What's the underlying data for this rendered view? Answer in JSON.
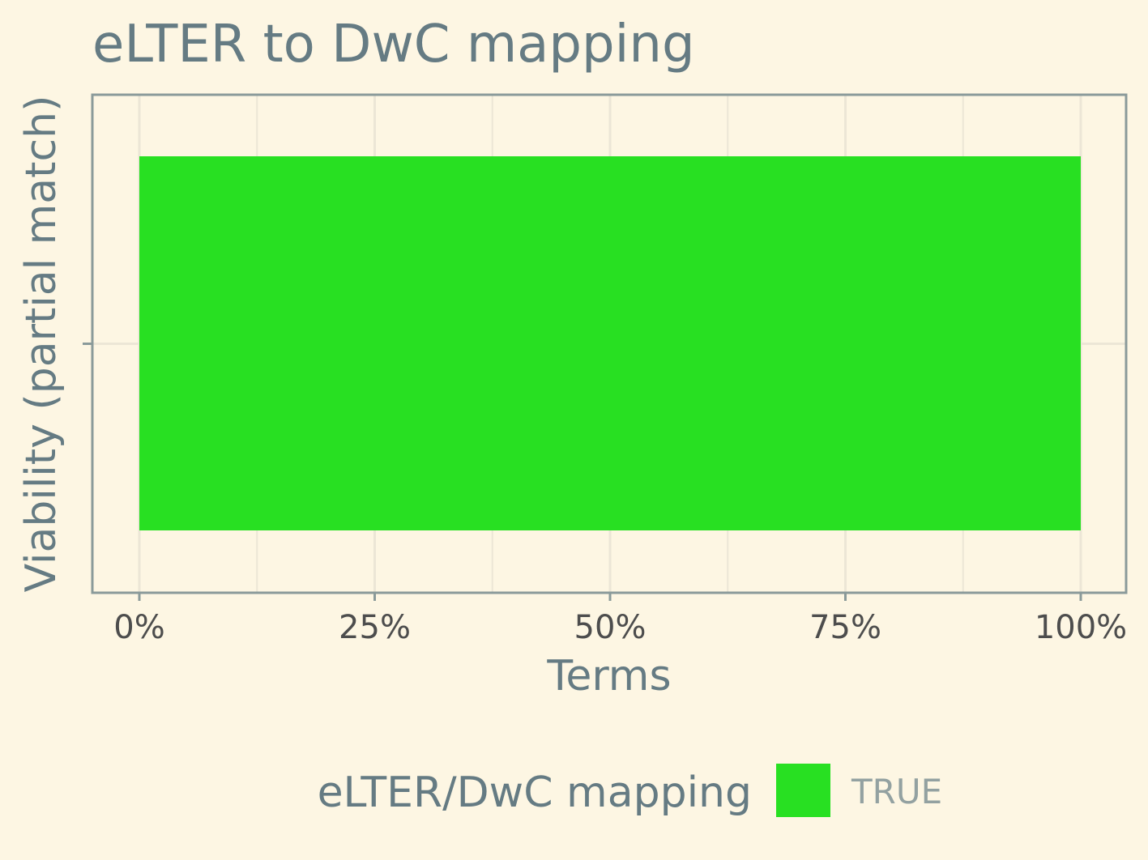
{
  "chart_data": {
    "type": "bar",
    "orientation": "horizontal",
    "stacked": true,
    "title": "eLTER to DwC mapping",
    "xlabel": "Terms",
    "ylabel": "Viability (partial match)",
    "x_unit": "percent",
    "xlim": [
      0,
      100
    ],
    "x_ticks": [
      0,
      25,
      50,
      75,
      100
    ],
    "x_tick_labels": [
      "0%",
      "25%",
      "50%",
      "75%",
      "100%"
    ],
    "categories": [
      ""
    ],
    "series": [
      {
        "name": "TRUE",
        "color": "#28e022",
        "values": [
          100
        ]
      }
    ],
    "grid": true,
    "legend": {
      "title": "eLTER/DwC mapping",
      "position": "bottom",
      "entries": [
        "TRUE"
      ]
    }
  },
  "colors": {
    "background": "#fdf6e3",
    "axis_line": "#8a9a9a",
    "grid": "#ece6d6",
    "text": "#657b83",
    "tick_text": "#4d4d4d",
    "legend_text": "#93a1a1"
  }
}
